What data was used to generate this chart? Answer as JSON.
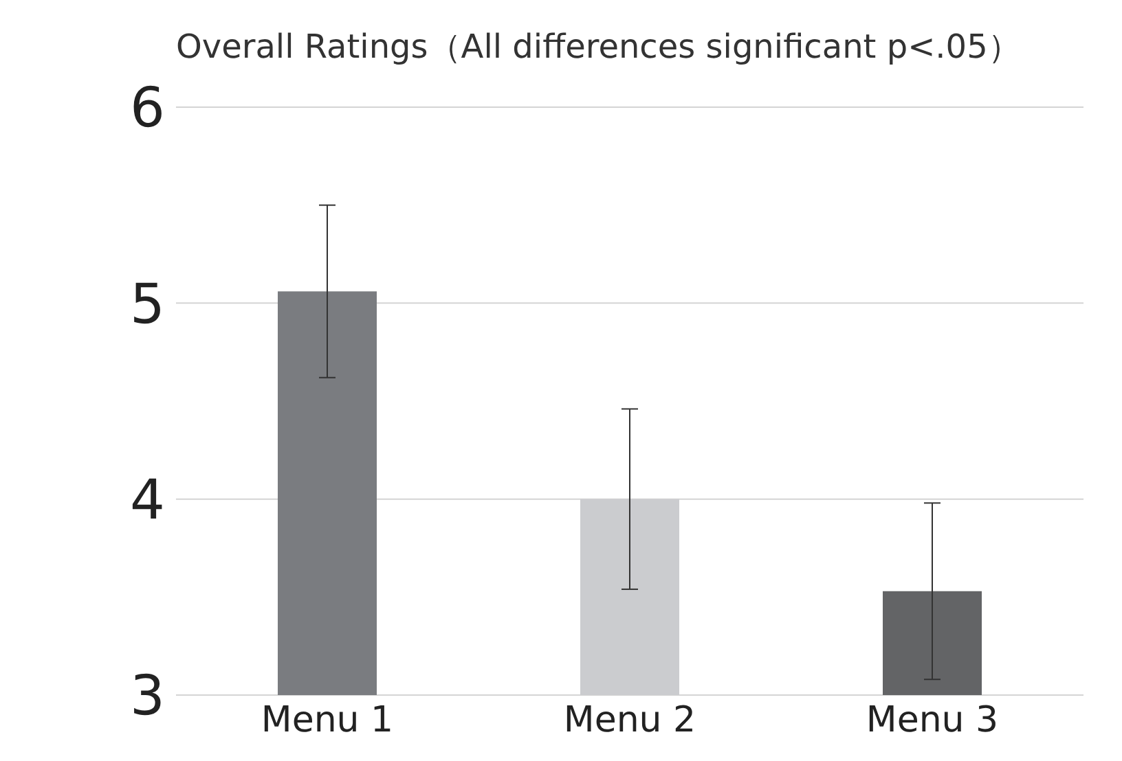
{
  "chart_data": {
    "type": "bar",
    "title": "Overall Ratings（All differences significant p<.05）",
    "categories": [
      "Menu 1",
      "Menu 2",
      "Menu 3"
    ],
    "values": [
      5.06,
      4.0,
      3.53
    ],
    "errors": [
      0.44,
      0.46,
      0.45
    ],
    "colors": [
      "#7a7c80",
      "#cbcccf",
      "#636466"
    ],
    "ylim": [
      3,
      6
    ],
    "yticks": [
      3,
      4,
      5,
      6
    ],
    "grid": "y",
    "legend": false
  }
}
